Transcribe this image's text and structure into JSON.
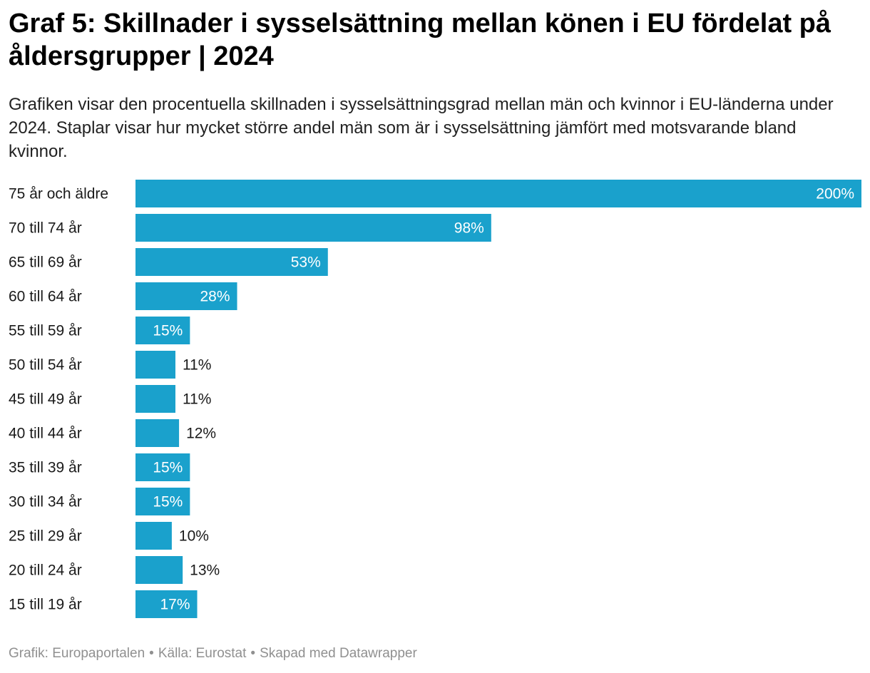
{
  "header": {
    "title": "Graf 5: Skillnader i sysselsättning mellan könen i EU fördelat på åldersgrupper | 2024",
    "subtitle": "Grafiken visar den procentuella skillnaden i sysselsättningsgrad mellan män och kvinnor i EU-länderna under 2024. Staplar visar hur mycket större andel män som är i sysselsättning jämfört med motsvarande bland kvinnor."
  },
  "chart_data": {
    "type": "bar",
    "orientation": "horizontal",
    "categories": [
      "75 år och äldre",
      "70 till 74 år",
      "65 till 69 år",
      "60 till 64 år",
      "55 till 59 år",
      "50 till 54 år",
      "45 till 49 år",
      "40 till 44 år",
      "35 till 39 år",
      "30 till 34 år",
      "25 till 29 år",
      "20 till 24 år",
      "15 till 19 år"
    ],
    "values": [
      200,
      98,
      53,
      28,
      15,
      11,
      11,
      12,
      15,
      15,
      10,
      13,
      17
    ],
    "labels": [
      "200%",
      "98%",
      "53%",
      "28%",
      "15%",
      "11%",
      "11%",
      "12%",
      "15%",
      "15%",
      "10%",
      "13%",
      "17%"
    ],
    "xlim": [
      0,
      200
    ],
    "unit": "%",
    "color": "#1aa1cc"
  },
  "footer": {
    "graphic": "Grafik: Europaportalen",
    "source": "Källa: Eurostat",
    "tool": "Skapad med Datawrapper",
    "separator": "•"
  }
}
